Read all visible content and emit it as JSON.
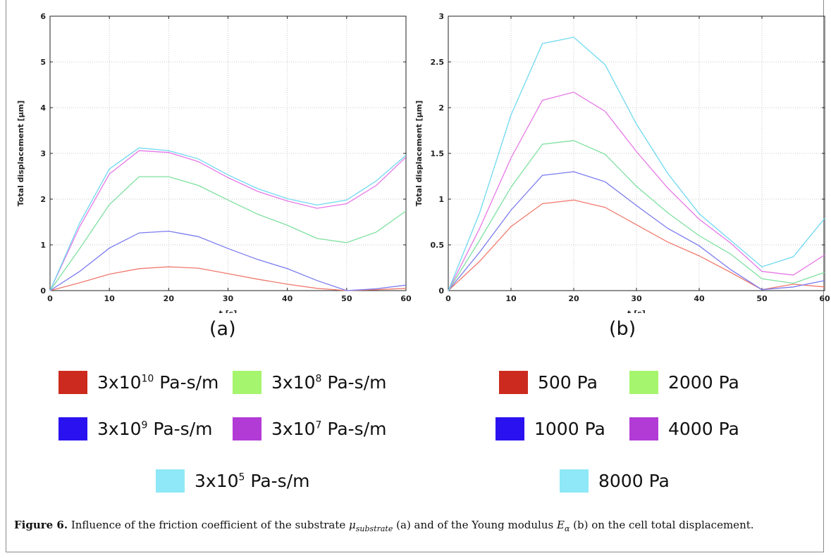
{
  "chart_data": [
    {
      "type": "line",
      "panel": "(a)",
      "xlabel": "t [s]",
      "ylabel": "Total displacement [µm]",
      "xlim": [
        0,
        60
      ],
      "ylim": [
        0,
        6
      ],
      "xticks": [
        0,
        10,
        20,
        30,
        40,
        50,
        60
      ],
      "yticks": [
        0,
        1,
        2,
        3,
        4,
        5,
        6
      ],
      "grid": true,
      "x": [
        0,
        5,
        10,
        15,
        20,
        25,
        30,
        35,
        40,
        45,
        50,
        55,
        60
      ],
      "series": [
        {
          "name": "3x10^10 Pa-s/m",
          "color": "#f07a6e",
          "values": [
            0,
            0.17,
            0.36,
            0.48,
            0.52,
            0.49,
            0.37,
            0.25,
            0.14,
            0.05,
            0,
            0.02,
            0.05
          ]
        },
        {
          "name": "3x10^9 Pa-s/m",
          "color": "#7b7bf0",
          "values": [
            0,
            0.42,
            0.93,
            1.26,
            1.3,
            1.18,
            0.92,
            0.68,
            0.48,
            0.22,
            0,
            0.04,
            0.12
          ]
        },
        {
          "name": "3x10^8 Pa-s/m",
          "color": "#7ee0a0",
          "values": [
            0,
            0.92,
            1.88,
            2.49,
            2.49,
            2.3,
            1.98,
            1.67,
            1.43,
            1.14,
            1.05,
            1.28,
            1.74
          ]
        },
        {
          "name": "3x10^7 Pa-s/m",
          "color": "#e678e6",
          "values": [
            0,
            1.4,
            2.55,
            3.06,
            3.02,
            2.82,
            2.47,
            2.17,
            1.96,
            1.8,
            1.9,
            2.3,
            2.92
          ]
        },
        {
          "name": "3x10^5 Pa-s/m",
          "color": "#6fd9f0",
          "values": [
            0,
            1.48,
            2.66,
            3.12,
            3.06,
            2.88,
            2.53,
            2.23,
            2.01,
            1.87,
            1.98,
            2.4,
            2.96
          ]
        }
      ]
    },
    {
      "type": "line",
      "panel": "(b)",
      "xlabel": "t [s]",
      "ylabel": "Total displacement [µm]",
      "xlim": [
        0,
        60
      ],
      "ylim": [
        0,
        3
      ],
      "xticks": [
        0,
        10,
        20,
        30,
        40,
        50,
        60
      ],
      "yticks": [
        0,
        0.5,
        1,
        1.5,
        2,
        2.5,
        3
      ],
      "grid": true,
      "x": [
        0,
        5,
        10,
        15,
        20,
        25,
        30,
        35,
        40,
        45,
        50,
        55,
        60
      ],
      "series": [
        {
          "name": "500 Pa",
          "color": "#f07a6e",
          "values": [
            0,
            0.32,
            0.7,
            0.95,
            0.99,
            0.91,
            0.72,
            0.53,
            0.38,
            0.2,
            0.01,
            0.07,
            0.04
          ]
        },
        {
          "name": "1000 Pa",
          "color": "#7b7bf0",
          "values": [
            0,
            0.42,
            0.88,
            1.26,
            1.3,
            1.19,
            0.93,
            0.68,
            0.49,
            0.23,
            0.01,
            0.04,
            0.11
          ]
        },
        {
          "name": "2000 Pa",
          "color": "#7ee0a0",
          "values": [
            0,
            0.55,
            1.13,
            1.6,
            1.64,
            1.49,
            1.14,
            0.85,
            0.6,
            0.4,
            0.13,
            0.08,
            0.2
          ]
        },
        {
          "name": "4000 Pa",
          "color": "#e678e6",
          "values": [
            0,
            0.68,
            1.45,
            2.08,
            2.17,
            1.96,
            1.52,
            1.12,
            0.78,
            0.52,
            0.21,
            0.17,
            0.39
          ]
        },
        {
          "name": "8000 Pa",
          "color": "#6fd9f0",
          "values": [
            0,
            0.85,
            1.92,
            2.7,
            2.77,
            2.47,
            1.82,
            1.28,
            0.84,
            0.55,
            0.26,
            0.37,
            0.79
          ]
        }
      ]
    }
  ],
  "panel_labels": {
    "a": "(a)",
    "b": "(b)"
  },
  "legend_a": [
    {
      "base": "3x10",
      "exp": "10",
      "unit": " Pa-s/m",
      "color": "#cc2a1e"
    },
    {
      "base": "3x10",
      "exp": "8",
      "unit": " Pa-s/m",
      "color": "#a6f56e"
    },
    {
      "base": "3x10",
      "exp": "9",
      "unit": " Pa-s/m",
      "color": "#2a12f0"
    },
    {
      "base": "3x10",
      "exp": "7",
      "unit": " Pa-s/m",
      "color": "#b23bd6"
    },
    {
      "base": "3x10",
      "exp": "5",
      "unit": " Pa-s/m",
      "color": "#8ee8f7"
    }
  ],
  "legend_b": [
    {
      "label": "500 Pa",
      "color": "#cc2a1e"
    },
    {
      "label": "2000 Pa",
      "color": "#a6f56e"
    },
    {
      "label": "1000 Pa",
      "color": "#2a12f0"
    },
    {
      "label": "4000 Pa",
      "color": "#b23bd6"
    },
    {
      "label": "8000 Pa",
      "color": "#8ee8f7"
    }
  ],
  "caption": {
    "label": "Figure 6.",
    "part1": " Influence of the friction coefficient of the substrate ",
    "mu": "μ",
    "mu_sub": "substrate",
    "part2": " (a) and of the Young modulus ",
    "E": "E",
    "E_sub": "α",
    "part3": " (b) on the cell total displacement."
  }
}
